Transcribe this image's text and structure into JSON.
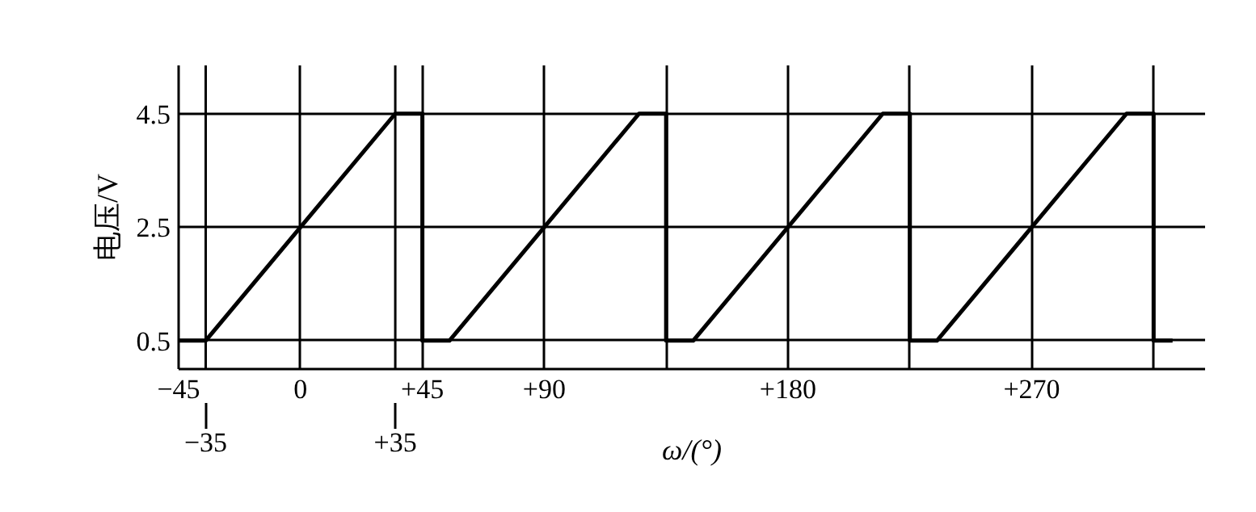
{
  "chart_data": {
    "type": "line",
    "xlabel": "ω/(°)",
    "ylabel": "电压/V",
    "x": [
      -45,
      -35,
      35,
      45,
      45,
      55,
      125,
      135,
      135,
      145,
      215,
      225,
      225,
      235,
      305,
      315,
      315,
      322
    ],
    "series": [
      {
        "color": "#000000",
        "values": [
          0.5,
          0.5,
          4.5,
          4.5,
          0.5,
          0.5,
          4.5,
          4.5,
          0.5,
          0.5,
          4.5,
          4.5,
          0.5,
          0.5,
          4.5,
          4.5,
          0.5,
          0.5
        ]
      }
    ],
    "xlim": [
      -45,
      334
    ],
    "ylim": [
      0,
      5.35
    ],
    "xticks": [
      {
        "value": -45,
        "label": "−45"
      },
      0,
      {
        "value": 45,
        "label": "+45"
      },
      {
        "value": 90,
        "label": "+90"
      },
      {
        "value": 135,
        "label": null
      },
      {
        "value": 180,
        "label": "+180"
      },
      {
        "value": 225,
        "label": null
      },
      {
        "value": 270,
        "label": "+270"
      },
      {
        "value": 315,
        "label": null
      }
    ],
    "yticks": [
      0.5,
      2.5,
      4.5
    ],
    "ref_lines": [
      {
        "axis": "x",
        "value": -35,
        "label": "−35"
      },
      {
        "axis": "x",
        "value": 35,
        "label": "+35"
      }
    ],
    "grid": true,
    "marker": "none",
    "line_style": "solid"
  }
}
